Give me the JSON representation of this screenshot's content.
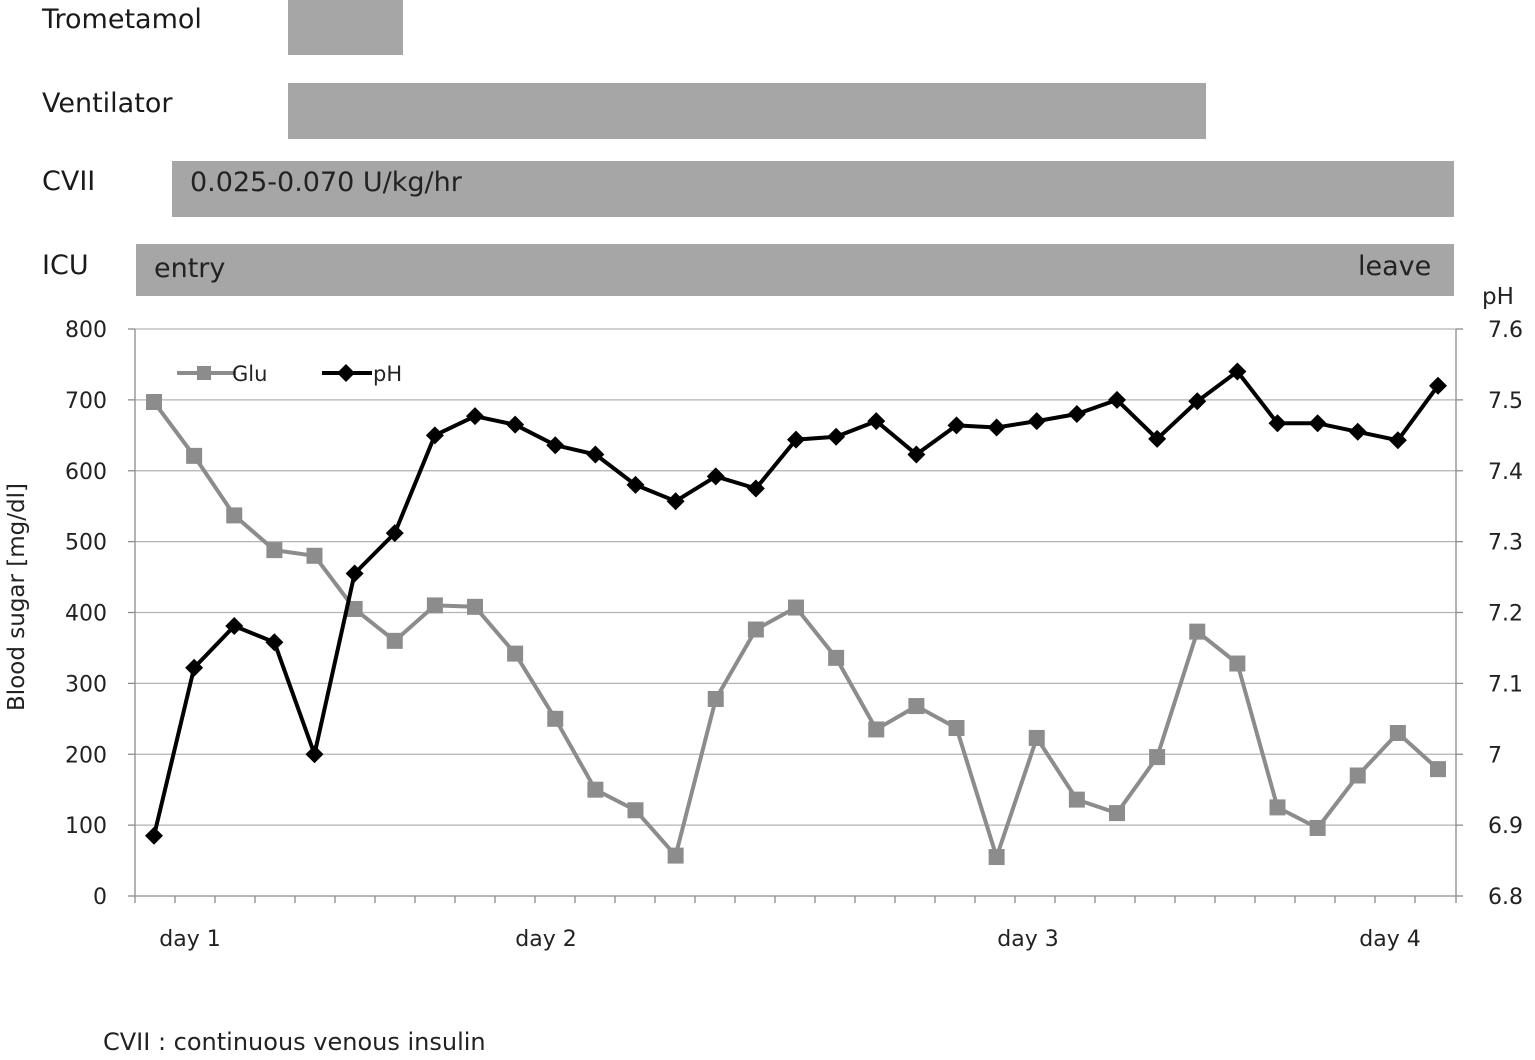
{
  "timeline": {
    "trometamol": {
      "label": "Trometamol"
    },
    "ventilator": {
      "label": "Ventilator"
    },
    "cvii": {
      "label": "CVII",
      "text": "0.025-0.070 U/kg/hr"
    },
    "icu": {
      "label": "ICU",
      "start_text": "entry",
      "end_text": "leave"
    }
  },
  "footnote": "CVII : continuous  venous  insulin",
  "chart_data": {
    "type": "line",
    "x_labels": [
      "day 1",
      "day 2",
      "day 3",
      "day 4"
    ],
    "y_left": {
      "label": "Blood sugar  [mg/dl]",
      "range": [
        0,
        800
      ],
      "ticks": [
        "0",
        "100",
        "200",
        "300",
        "400",
        "500",
        "600",
        "700",
        "800"
      ]
    },
    "y_right": {
      "label": "pH",
      "range": [
        6.8,
        7.6
      ],
      "ticks": [
        "6.8",
        "6.9",
        "7",
        "7.1",
        "7.2",
        "7.3",
        "7.4",
        "7.5",
        "7.6"
      ]
    },
    "grid": true,
    "legend": "top-left",
    "series": [
      {
        "name": "Glu",
        "axis": "left",
        "color": "#8c8c8c",
        "marker": "square",
        "values": [
          697,
          621,
          537,
          488,
          480,
          405,
          360,
          410,
          408,
          342,
          250,
          150,
          121,
          57,
          278,
          376,
          407,
          336,
          235,
          268,
          237,
          55,
          223,
          136,
          117,
          196,
          373,
          328,
          125,
          96,
          170,
          230,
          179
        ]
      },
      {
        "name": "pH",
        "axis": "right",
        "color": "#000000",
        "marker": "diamond",
        "values": [
          6.885,
          7.122,
          7.181,
          7.158,
          7.0,
          7.255,
          7.312,
          7.45,
          7.477,
          7.465,
          7.436,
          7.423,
          7.38,
          7.357,
          7.392,
          7.375,
          7.444,
          7.448,
          7.47,
          7.423,
          7.464,
          7.461,
          7.47,
          7.48,
          7.5,
          7.445,
          7.498,
          7.54,
          7.467,
          7.467,
          7.455,
          7.443,
          7.52
        ]
      }
    ]
  }
}
